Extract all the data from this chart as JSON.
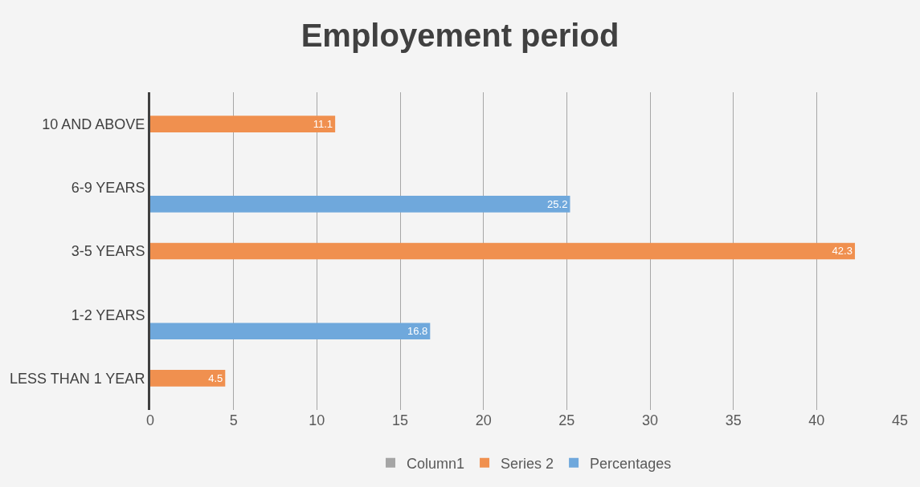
{
  "chart_data": {
    "type": "bar",
    "orientation": "horizontal",
    "title": "Employement period",
    "categories": [
      "10 AND ABOVE",
      "6-9 YEARS",
      "3-5 YEARS",
      "1-2 YEARS",
      "LESS THAN 1 YEAR"
    ],
    "series": [
      {
        "name": "Column1",
        "color": "#a5a5a5",
        "values": [
          null,
          null,
          null,
          null,
          null
        ]
      },
      {
        "name": "Series 2",
        "color": "#f0904f",
        "values": [
          11.1,
          null,
          42.3,
          null,
          4.5
        ]
      },
      {
        "name": "Percentages",
        "color": "#6fa8dc",
        "values": [
          null,
          25.2,
          null,
          16.8,
          null
        ]
      }
    ],
    "xlim": [
      0,
      45
    ],
    "xticks": [
      0,
      5,
      10,
      15,
      20,
      25,
      30,
      35,
      40,
      45
    ],
    "grid": "x",
    "legend": "bottom",
    "data_labels": true
  }
}
